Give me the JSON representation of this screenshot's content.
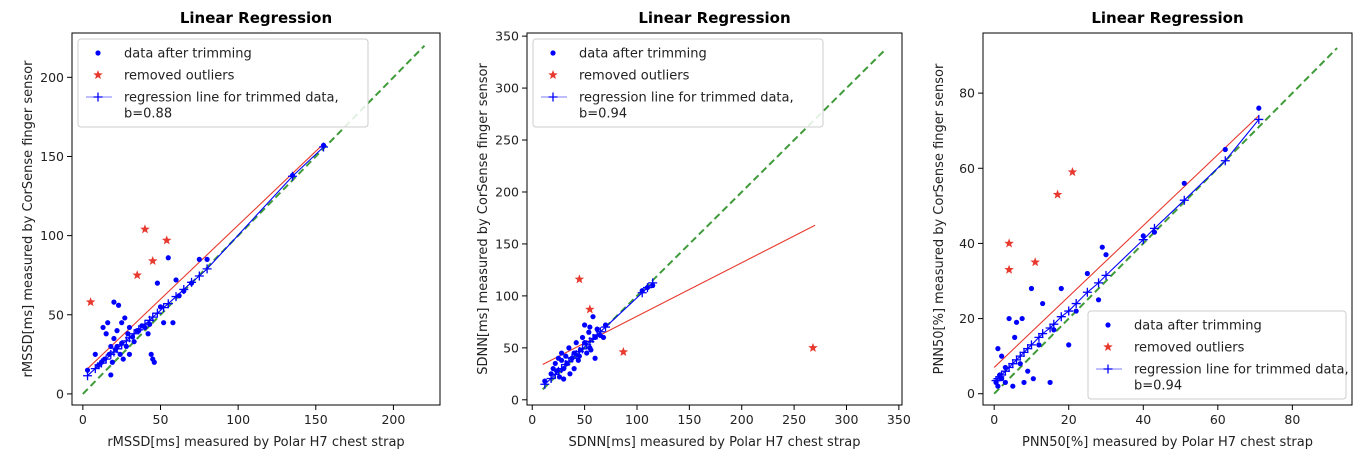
{
  "chart_data": [
    {
      "type": "scatter",
      "title": "Linear Regression",
      "xlabel": "rMSSD[ms] measured by Polar H7 chest strap",
      "ylabel": "rMSSD[ms] measured by CorSense finger sensor",
      "xlim": [
        -7,
        230
      ],
      "ylim": [
        -7,
        228
      ],
      "xticks": [
        0,
        50,
        100,
        150,
        200
      ],
      "yticks": [
        0,
        50,
        100,
        150,
        200
      ],
      "legend_position": "top-left",
      "series": [
        {
          "name": "data after trimming",
          "kind": "scatter",
          "marker": "dot",
          "color": "#0000ff",
          "x": [
            3,
            8,
            10,
            12,
            13,
            14,
            15,
            16,
            17,
            18,
            18,
            19,
            20,
            20,
            21,
            22,
            22,
            23,
            24,
            25,
            25,
            26,
            27,
            28,
            29,
            30,
            30,
            32,
            33,
            35,
            36,
            38,
            40,
            42,
            43,
            44,
            45,
            46,
            48,
            50,
            52,
            55,
            58,
            60,
            62,
            65,
            70,
            75,
            80,
            135,
            155
          ],
          "y": [
            15,
            25,
            18,
            20,
            42,
            22,
            38,
            45,
            25,
            30,
            12,
            20,
            58,
            35,
            28,
            30,
            40,
            56,
            25,
            32,
            45,
            22,
            48,
            30,
            38,
            42,
            25,
            36,
            33,
            40,
            40,
            43,
            42,
            38,
            44,
            25,
            22,
            20,
            70,
            55,
            45,
            86,
            45,
            72,
            62,
            65,
            70,
            85,
            85,
            138,
            157
          ]
        },
        {
          "name": "removed outliers",
          "kind": "scatter",
          "marker": "star",
          "color": "#e8392e",
          "x": [
            5,
            35,
            40,
            45,
            54
          ],
          "y": [
            58,
            75,
            104,
            84,
            97
          ]
        },
        {
          "name": "regression line for trimmed data,\n b=0.88",
          "kind": "line-markers",
          "marker": "plus",
          "color": "#0000ff",
          "x": [
            3,
            8,
            12,
            15,
            18,
            20,
            22,
            25,
            28,
            30,
            33,
            36,
            40,
            43,
            45,
            48,
            52,
            55,
            60,
            65,
            70,
            75,
            80,
            135,
            155
          ],
          "y": [
            11.5,
            16,
            19.5,
            22,
            25,
            26.5,
            28.5,
            31,
            33.5,
            35.5,
            38,
            40.5,
            44,
            46.5,
            48.5,
            51,
            54.5,
            57,
            61.5,
            66,
            70.5,
            74.5,
            79,
            137.5,
            156
          ]
        },
        {
          "name": "",
          "kind": "line",
          "color": "#e8392e",
          "x": [
            2,
            155
          ],
          "y": [
            15,
            158
          ]
        },
        {
          "name": "",
          "kind": "dashed",
          "color": "#3f9a3a",
          "x": [
            0,
            220
          ],
          "y": [
            0,
            220
          ]
        }
      ]
    },
    {
      "type": "scatter",
      "title": "Linear Regression",
      "xlabel": "SDNN[ms] measured by Polar H7 chest strap",
      "ylabel": "SDNN[ms] measured by CorSense finger sensor",
      "xlim": [
        -5,
        353
      ],
      "ylim": [
        -5,
        353
      ],
      "xticks": [
        0,
        50,
        100,
        150,
        200,
        250,
        300,
        350
      ],
      "yticks": [
        0,
        50,
        100,
        150,
        200,
        250,
        300,
        350
      ],
      "legend_position": "top-left",
      "series": [
        {
          "name": "data after trimming",
          "kind": "scatter",
          "marker": "dot",
          "color": "#0000ff",
          "x": [
            12,
            18,
            20,
            22,
            24,
            25,
            26,
            28,
            28,
            30,
            30,
            32,
            33,
            35,
            36,
            38,
            40,
            40,
            42,
            44,
            45,
            46,
            48,
            50,
            50,
            52,
            54,
            55,
            55,
            56,
            58,
            60,
            60,
            62,
            65,
            68,
            70,
            105,
            110,
            115
          ],
          "y": [
            18,
            25,
            30,
            35,
            28,
            40,
            22,
            38,
            45,
            30,
            20,
            42,
            35,
            50,
            25,
            40,
            45,
            30,
            55,
            38,
            42,
            48,
            60,
            55,
            72,
            45,
            65,
            70,
            50,
            48,
            80,
            60,
            40,
            68,
            62,
            60,
            72,
            105,
            108,
            110
          ]
        },
        {
          "name": "removed outliers",
          "kind": "scatter",
          "marker": "star",
          "color": "#e8392e",
          "x": [
            45,
            55,
            87,
            268
          ],
          "y": [
            116,
            87,
            46,
            50
          ]
        },
        {
          "name": "regression line for trimmed data,\n b=0.94",
          "kind": "line-markers",
          "marker": "plus",
          "color": "#0000ff",
          "x": [
            12,
            18,
            22,
            25,
            28,
            32,
            35,
            38,
            42,
            45,
            48,
            52,
            55,
            58,
            62,
            65,
            70,
            105,
            110,
            115
          ],
          "y": [
            15,
            20.5,
            24.5,
            27.5,
            30,
            34,
            37,
            40,
            43.5,
            46.5,
            49,
            53,
            56,
            59,
            62.5,
            65.5,
            70,
            103,
            108,
            112.5
          ]
        },
        {
          "name": "",
          "kind": "line",
          "color": "#e8392e",
          "x": [
            10,
            270
          ],
          "y": [
            34,
            168
          ]
        },
        {
          "name": "",
          "kind": "dashed",
          "color": "#3f9a3a",
          "x": [
            10,
            338
          ],
          "y": [
            10,
            338
          ]
        }
      ]
    },
    {
      "type": "scatter",
      "title": "Linear Regression",
      "xlabel": "PNN50[%] measured by Polar H7 chest strap",
      "ylabel": "PNN50[%] measured by CorSense finger sensor",
      "xlim": [
        -3,
        96
      ],
      "ylim": [
        -3,
        96
      ],
      "xticks": [
        0,
        20,
        40,
        60,
        80
      ],
      "yticks": [
        0,
        20,
        40,
        60,
        80
      ],
      "legend_position": "bottom-right",
      "series": [
        {
          "name": "data after trimming",
          "kind": "scatter",
          "marker": "dot",
          "color": "#0000ff",
          "x": [
            0.5,
            1,
            1,
            1.5,
            2,
            2,
            3,
            3,
            4,
            5,
            5.5,
            6,
            7,
            7.5,
            8,
            9,
            10,
            10.5,
            12,
            13,
            15,
            16,
            18,
            20,
            22,
            25,
            28,
            29,
            30,
            40,
            43,
            51,
            62,
            71
          ],
          "y": [
            3,
            12,
            2,
            5,
            10,
            4,
            7,
            3,
            20,
            2,
            15,
            19,
            8,
            20,
            3,
            6,
            28,
            4,
            13,
            24,
            3,
            17,
            28,
            13,
            22,
            32,
            25,
            39,
            37,
            42,
            43,
            56,
            65,
            76
          ]
        },
        {
          "name": "removed outliers",
          "kind": "scatter",
          "marker": "star",
          "color": "#e8392e",
          "x": [
            4,
            4,
            11,
            17,
            21
          ],
          "y": [
            33,
            40,
            35,
            53,
            59
          ]
        },
        {
          "name": "regression line for trimmed data,\n b=0.94",
          "kind": "line-markers",
          "marker": "plus",
          "color": "#0000ff",
          "x": [
            0.5,
            1,
            1.5,
            2,
            3,
            4,
            5,
            6,
            7,
            8,
            9,
            10,
            12,
            13,
            15,
            16,
            18,
            20,
            22,
            25,
            28,
            30,
            40,
            43,
            51,
            62,
            71
          ],
          "y": [
            3.5,
            4,
            4.5,
            5,
            6,
            7,
            8,
            9,
            10,
            11,
            12,
            13,
            15,
            16,
            17.5,
            18.5,
            20.5,
            22,
            24,
            27,
            29.5,
            31.5,
            41,
            44,
            51.5,
            62,
            73
          ]
        },
        {
          "name": "",
          "kind": "line",
          "color": "#e8392e",
          "x": [
            0,
            71
          ],
          "y": [
            7,
            74
          ]
        },
        {
          "name": "",
          "kind": "dashed",
          "color": "#3f9a3a",
          "x": [
            0,
            92
          ],
          "y": [
            0,
            92
          ]
        }
      ]
    }
  ]
}
